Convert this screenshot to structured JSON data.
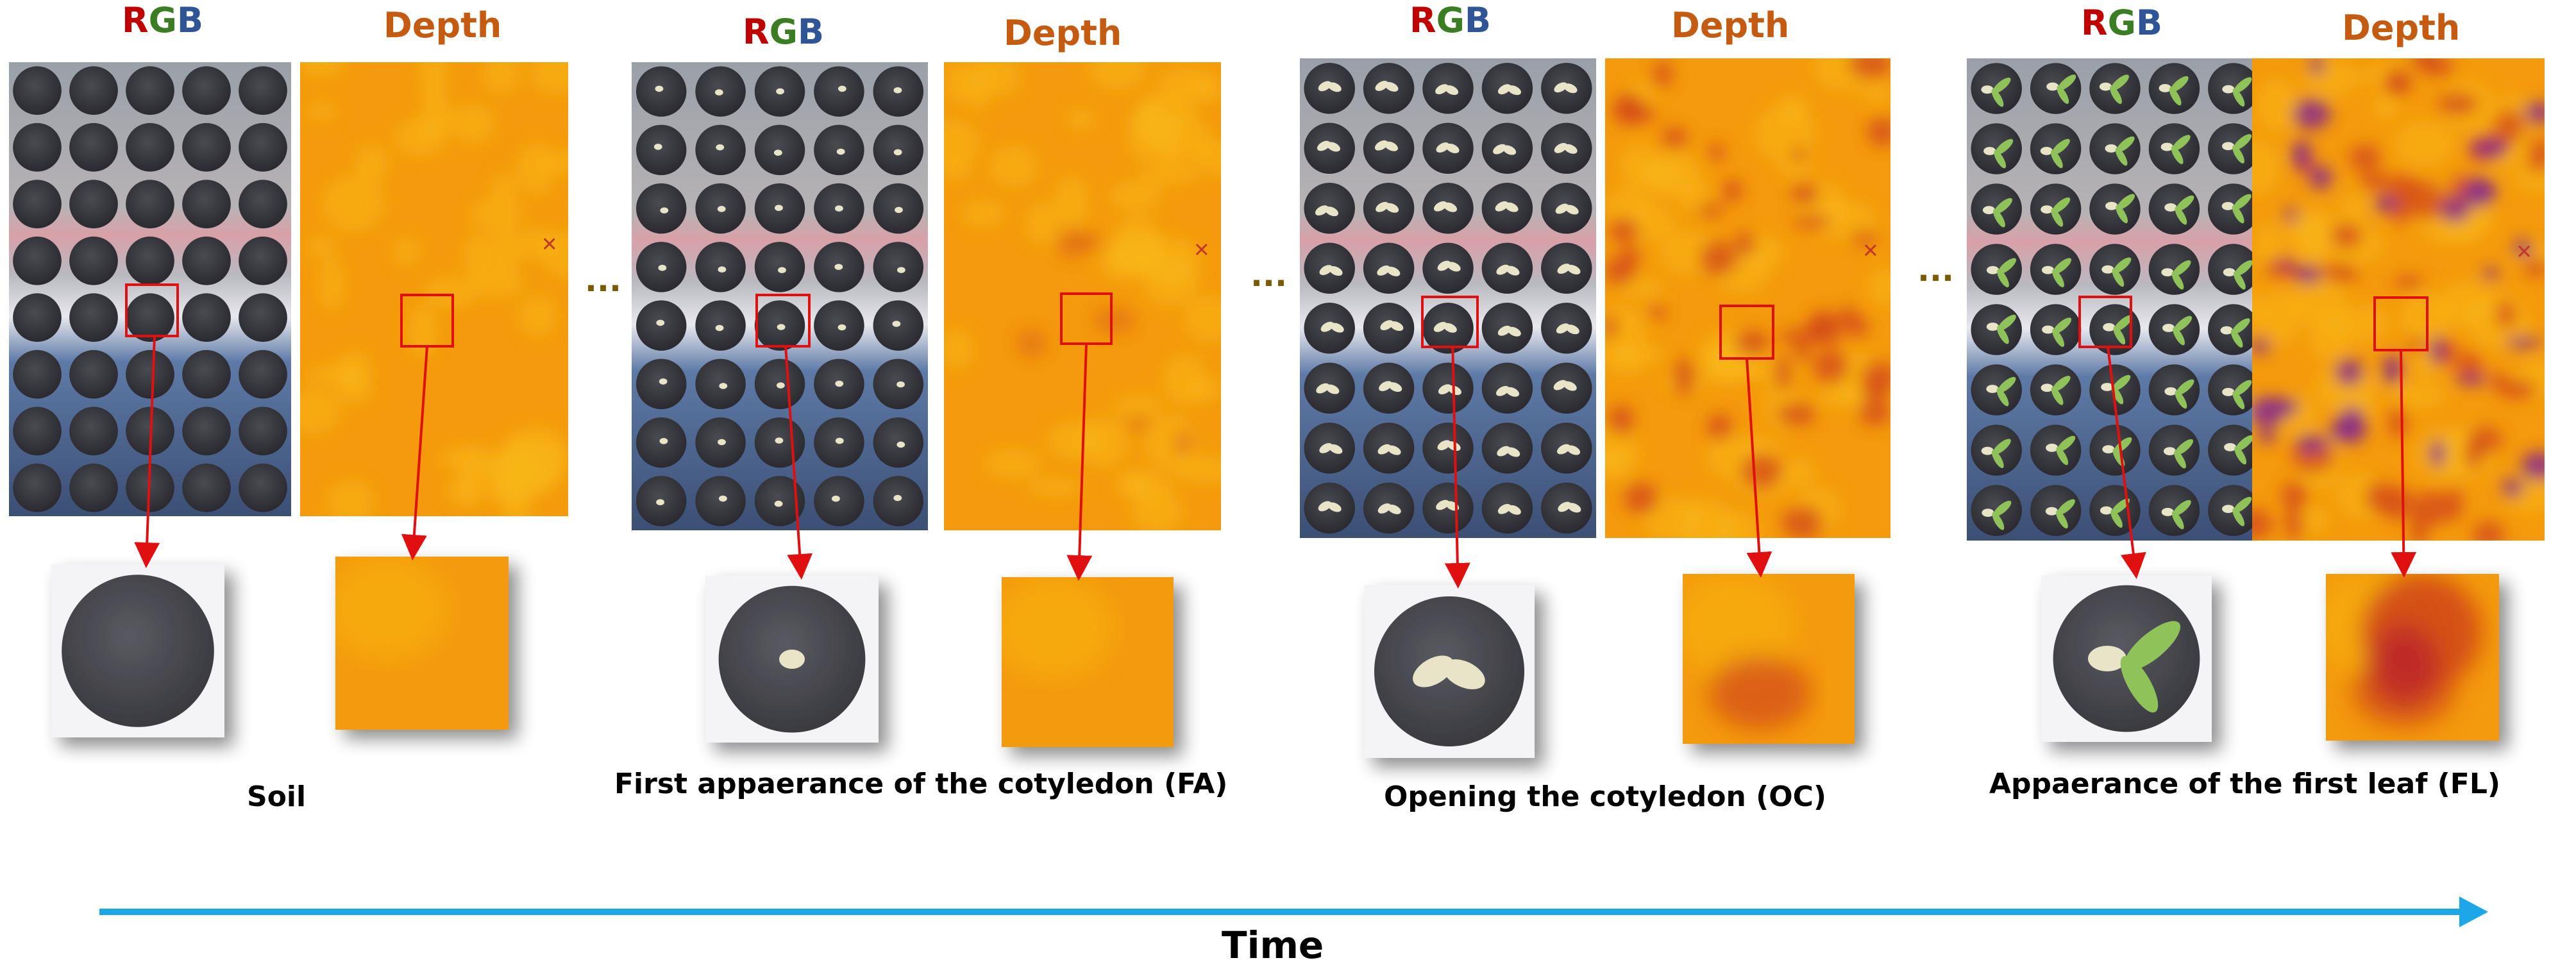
{
  "figure": {
    "header_rgb": {
      "r": "R",
      "g": "G",
      "b": "B"
    },
    "header_depth": "Depth",
    "ellipsis": "...",
    "stages": [
      {
        "caption": "Soil",
        "stage": "soil"
      },
      {
        "caption": "First appaerance of the cotyledon (FA)",
        "stage": "fa"
      },
      {
        "caption": "Opening the cotyledon (OC)",
        "stage": "oc"
      },
      {
        "caption": "Appaerance of  the first leaf (FL)",
        "stage": "fl"
      }
    ],
    "time_label": "Time",
    "colors": {
      "tray_dark": "#2e2e33",
      "tray_frame": "#8a8f98",
      "tray_red_band": "#d9a0a8",
      "tray_blue_band": "#5d7aa6",
      "depth_base": "#f49a0c",
      "depth_light": "#f7b81a",
      "depth_dark": "#d2481a",
      "depth_purple": "#8a2a8c",
      "pointer_red": "#e01010",
      "arrow_blue": "#1ea7e8",
      "cotyledon": "#e8e4c8",
      "leaf_green": "#8fc35a"
    }
  }
}
